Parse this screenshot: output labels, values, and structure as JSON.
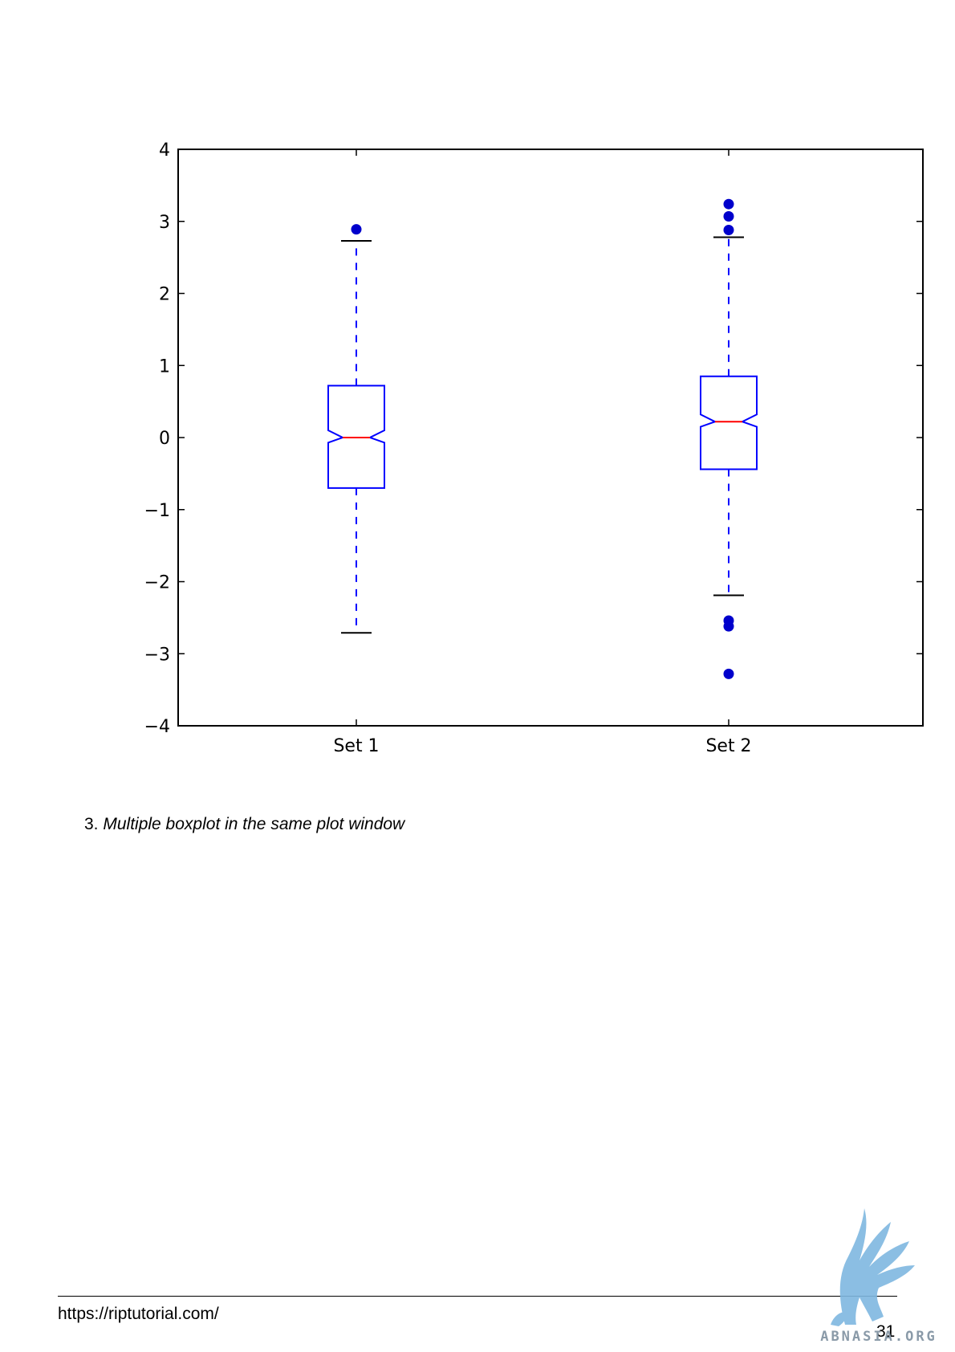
{
  "chart_data": {
    "type": "box",
    "categories": [
      "Set 1",
      "Set 2"
    ],
    "ylim": [
      -4,
      4
    ],
    "yticks": [
      4,
      3,
      2,
      1,
      0,
      -1,
      -2,
      -3,
      -4
    ],
    "ytick_labels": [
      "4",
      "3",
      "2",
      "1",
      "0",
      "−1",
      "−2",
      "−3",
      "−4"
    ],
    "notched": true,
    "grid": false,
    "boxes": [
      {
        "category": "Set 1",
        "whisker_low": -2.71,
        "q1": -0.7,
        "median": 0.0,
        "q3": 0.72,
        "whisker_high": 2.73,
        "notch_low": -0.07,
        "notch_high": 0.1,
        "outliers": [
          2.89
        ]
      },
      {
        "category": "Set 2",
        "whisker_low": -2.19,
        "q1": -0.44,
        "median": 0.22,
        "q3": 0.85,
        "whisker_high": 2.78,
        "notch_low": 0.15,
        "notch_high": 0.32,
        "outliers": [
          3.24,
          3.07,
          2.88,
          -2.54,
          -2.62,
          -3.28
        ]
      }
    ],
    "colors": {
      "box": "#0000ff",
      "median": "#ff0000",
      "whisker": "#0000ff",
      "cap": "#000000",
      "outlier": "#0000cc",
      "axes": "#000000"
    }
  },
  "caption": {
    "number": "3.",
    "text": "Multiple boxplot in the same plot window"
  },
  "footer": {
    "url": "https://riptutorial.com/",
    "page_number": "31"
  },
  "watermark": {
    "text": "ABNASIA.ORG",
    "color": "#7fb8e0"
  }
}
